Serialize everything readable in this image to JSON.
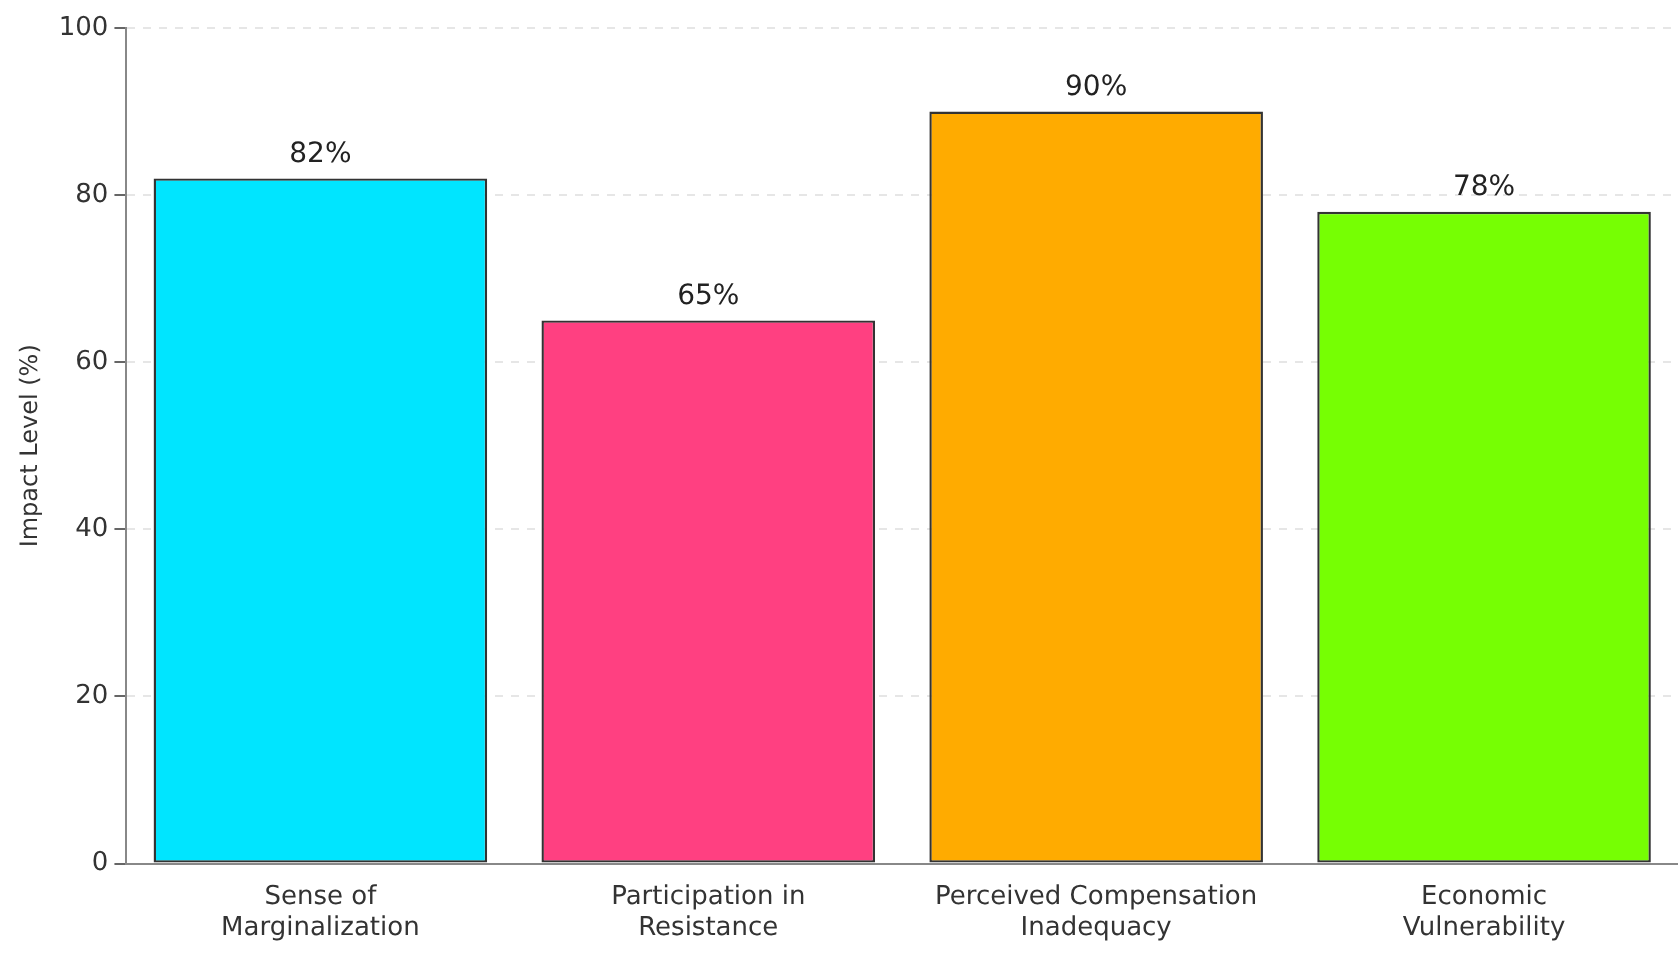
{
  "chart_data": {
    "type": "bar",
    "ylabel": "Impact Level (%)",
    "categories": [
      "Sense of\nMarginalization",
      "Participation in\nResistance",
      "Perceived Compensation\nInadequacy",
      "Economic\nVulnerability"
    ],
    "values": [
      82,
      65,
      90,
      78
    ],
    "colors": [
      "#00e5ff",
      "#ff4081",
      "#ffab00",
      "#76ff03"
    ],
    "value_labels": [
      "82%",
      "65%",
      "90%",
      "78%"
    ],
    "ylim": [
      0,
      100
    ],
    "yticks": [
      0,
      20,
      40,
      60,
      80,
      100
    ],
    "grid": "y",
    "legend": false
  }
}
